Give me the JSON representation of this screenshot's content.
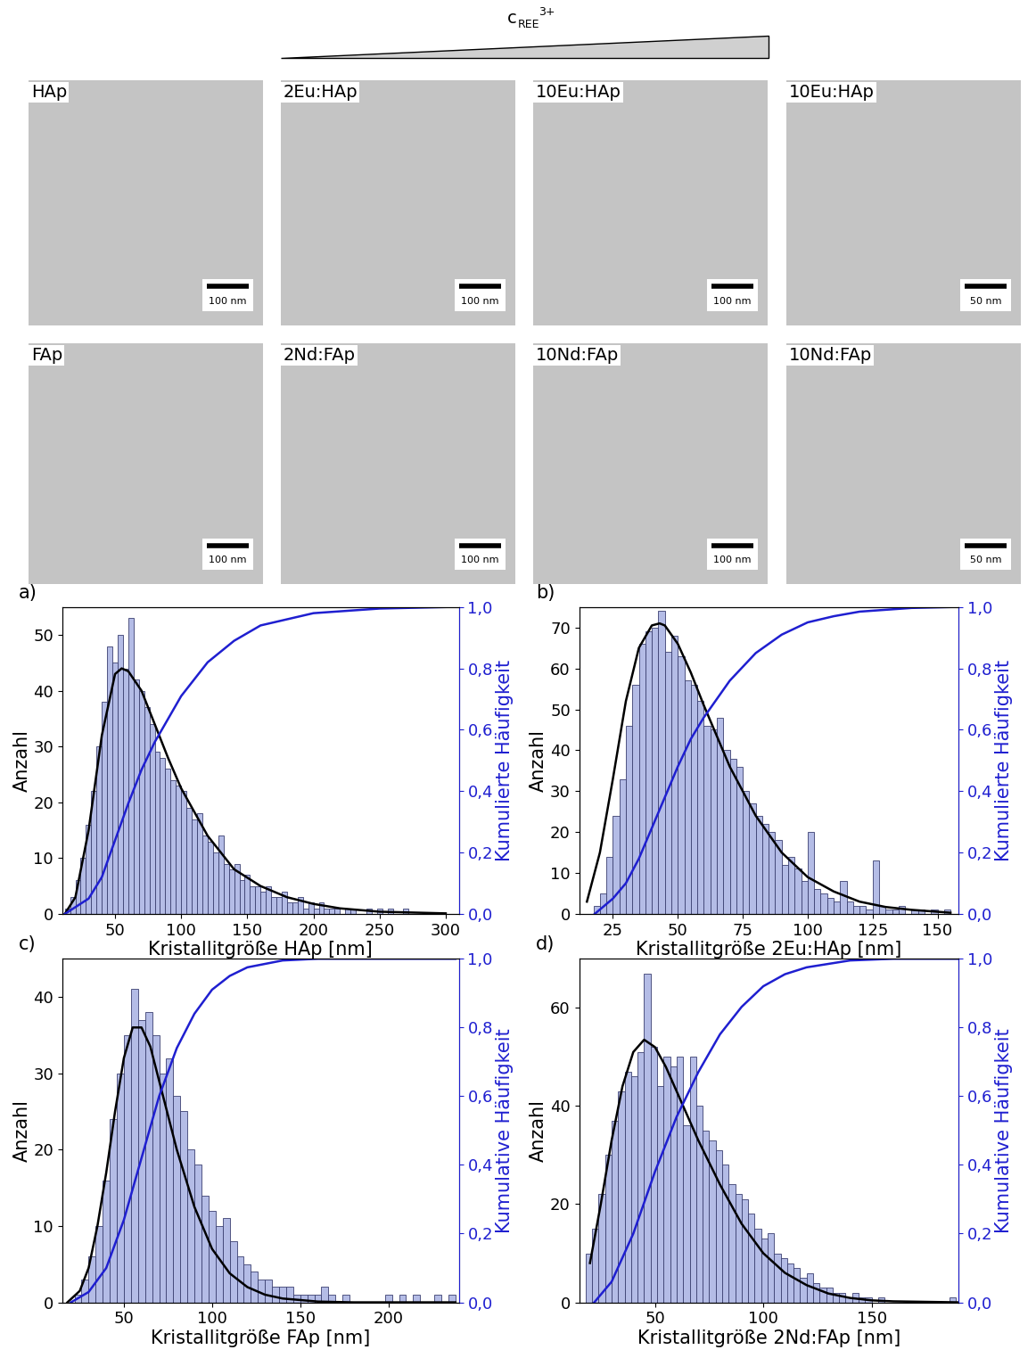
{
  "images": {
    "header": {
      "base": "c",
      "subscript": "REE",
      "superscript": "3+"
    },
    "panels": [
      {
        "label": "HAp",
        "scale_bar": "100 nm"
      },
      {
        "label": "2Eu:HAp",
        "scale_bar": "100 nm"
      },
      {
        "label": "10Eu:HAp",
        "scale_bar": "100 nm"
      },
      {
        "label": "10Eu:HAp",
        "scale_bar": "50 nm"
      },
      {
        "label": "FAp",
        "scale_bar": "100 nm"
      },
      {
        "label": "2Nd:FAp",
        "scale_bar": "100 nm"
      },
      {
        "label": "10Nd:FAp",
        "scale_bar": "100 nm"
      },
      {
        "label": "10Nd:FAp",
        "scale_bar": "50 nm"
      }
    ]
  },
  "chart_data": [
    {
      "type": "histogram",
      "panel_label": "a)",
      "x_label": "Kristallitgröße HAp [nm]",
      "y_label": "Anzahl",
      "y2_label": "Kumulierte Häufigkeit",
      "bins": [
        12,
        16,
        20,
        24,
        28,
        32,
        36,
        40,
        44,
        48,
        52,
        56,
        60,
        64,
        68,
        72,
        76,
        80,
        84,
        88,
        92,
        96,
        100,
        104,
        108,
        112,
        116,
        120,
        124,
        128,
        132,
        136,
        140,
        144,
        148,
        152,
        156,
        160,
        164,
        168,
        172,
        176,
        180,
        184,
        188,
        192,
        196,
        200,
        204,
        208,
        212,
        216,
        220,
        224,
        228,
        232,
        236,
        240,
        244,
        248,
        252,
        256,
        260,
        264,
        268,
        272,
        276,
        280,
        284,
        288,
        292,
        296,
        300
      ],
      "values": [
        1,
        3,
        6,
        10,
        16,
        22,
        30,
        38,
        48,
        45,
        50,
        44,
        53,
        42,
        40,
        37,
        34,
        29,
        28,
        26,
        24,
        23,
        22,
        19,
        17,
        18,
        14,
        13,
        11,
        14,
        9,
        8,
        9,
        6,
        7,
        5,
        5,
        4,
        5,
        3,
        3,
        4,
        2,
        2,
        3,
        1,
        2,
        1,
        2,
        1,
        1,
        1,
        0,
        1,
        1,
        0,
        0,
        1,
        0,
        1,
        0,
        1,
        0,
        0,
        1,
        0,
        0,
        0,
        0,
        0,
        0,
        0
      ],
      "color": "#b4bce6",
      "fit": {
        "type": "line",
        "color": "#000000",
        "x": [
          12,
          20,
          30,
          40,
          50,
          55,
          60,
          70,
          80,
          90,
          100,
          120,
          140,
          160,
          180,
          200,
          220,
          250,
          300
        ],
        "values": [
          0,
          3,
          15,
          32,
          43,
          44,
          43.5,
          40,
          34,
          28,
          22.5,
          14,
          8,
          5,
          3,
          1.8,
          1,
          0.4,
          0.1
        ]
      },
      "cumulative": {
        "type": "line",
        "color": "#1f1fd0",
        "axis": "y2",
        "x": [
          12,
          30,
          40,
          50,
          60,
          70,
          80,
          100,
          120,
          140,
          160,
          200,
          250,
          300
        ],
        "values": [
          0,
          0.05,
          0.12,
          0.24,
          0.36,
          0.47,
          0.56,
          0.71,
          0.82,
          0.89,
          0.94,
          0.98,
          0.995,
          1.0
        ]
      },
      "xlim": [
        10,
        310
      ],
      "xticks": [
        50,
        100,
        150,
        200,
        250,
        300
      ],
      "ylim": [
        0,
        55
      ],
      "yticks": [
        0,
        10,
        20,
        30,
        40,
        50
      ],
      "y2lim": [
        0,
        1.0
      ],
      "y2ticks": [
        {
          "value": 0.0,
          "label": "0,0"
        },
        {
          "value": 0.2,
          "label": "0,2"
        },
        {
          "value": 0.4,
          "label": "0,4"
        },
        {
          "value": 0.6,
          "label": "0,6"
        },
        {
          "value": 0.8,
          "label": "0,8"
        },
        {
          "value": 1.0,
          "label": "1,0"
        }
      ]
    },
    {
      "type": "histogram",
      "panel_label": "b)",
      "x_label": "Kristallitgröße 2Eu:HAp [nm]",
      "y_label": "Anzahl",
      "y2_label": "Kumulierte Häufigkeit",
      "bins": [
        15,
        17.5,
        20,
        22.5,
        25,
        27.5,
        30,
        32.5,
        35,
        37.5,
        40,
        42.5,
        45,
        47.5,
        50,
        52.5,
        55,
        57.5,
        60,
        62.5,
        65,
        67.5,
        70,
        72.5,
        75,
        77.5,
        80,
        82.5,
        85,
        87.5,
        90,
        92.5,
        95,
        97.5,
        100,
        102.5,
        105,
        107.5,
        110,
        112.5,
        115,
        117.5,
        120,
        122.5,
        125,
        127.5,
        130,
        132.5,
        135,
        137.5,
        140,
        142.5,
        145,
        147.5,
        150,
        152.5,
        155
      ],
      "values": [
        0,
        2,
        5,
        14,
        24,
        33,
        46,
        56,
        66,
        69,
        70,
        74,
        64,
        68,
        63,
        57,
        56,
        52,
        46,
        45,
        48,
        40,
        38,
        36,
        30,
        27,
        24,
        22,
        20,
        18,
        12,
        14,
        11,
        8,
        20,
        6,
        5,
        4,
        3,
        8,
        3,
        2,
        2,
        1,
        13,
        2,
        1,
        1,
        2,
        0,
        1,
        1,
        0,
        1,
        0,
        1
      ],
      "color": "#b4bce6",
      "fit": {
        "type": "line",
        "color": "#000000",
        "x": [
          15,
          20,
          25,
          30,
          35,
          40,
          43,
          45,
          50,
          55,
          60,
          70,
          80,
          90,
          100,
          110,
          120,
          130,
          140,
          155
        ],
        "values": [
          3,
          15,
          33,
          52,
          65,
          70.5,
          71,
          70.5,
          66,
          59,
          51,
          36,
          24,
          15,
          9,
          5.5,
          3,
          1.7,
          1,
          0.3
        ]
      },
      "cumulative": {
        "type": "line",
        "color": "#1f1fd0",
        "axis": "y2",
        "x": [
          18,
          25,
          30,
          35,
          40,
          45,
          50,
          55,
          60,
          70,
          80,
          90,
          100,
          110,
          120,
          140,
          155
        ],
        "values": [
          0,
          0.05,
          0.1,
          0.18,
          0.28,
          0.38,
          0.48,
          0.57,
          0.64,
          0.76,
          0.85,
          0.91,
          0.95,
          0.97,
          0.985,
          0.997,
          1.0
        ]
      },
      "xlim": [
        12,
        158
      ],
      "xticks": [
        25,
        50,
        75,
        100,
        125,
        150
      ],
      "ylim": [
        0,
        75
      ],
      "yticks": [
        0,
        10,
        20,
        30,
        40,
        50,
        60,
        70
      ],
      "y2lim": [
        0,
        1.0
      ],
      "y2ticks": [
        {
          "value": 0.0,
          "label": "0,0"
        },
        {
          "value": 0.2,
          "label": "0,2"
        },
        {
          "value": 0.4,
          "label": "0,4"
        },
        {
          "value": 0.6,
          "label": "0,6"
        },
        {
          "value": 0.8,
          "label": "0,8"
        },
        {
          "value": 1.0,
          "label": "1,0"
        }
      ]
    },
    {
      "type": "histogram",
      "panel_label": "c)",
      "x_label": "Kristallitgröße FAp [nm]",
      "y_label": "Anzahl",
      "y2_label": "Kumulative Häufigkeit",
      "bins": [
        18,
        22,
        26,
        30,
        34,
        38,
        42,
        46,
        50,
        54,
        58,
        62,
        66,
        70,
        74,
        78,
        82,
        86,
        90,
        94,
        98,
        102,
        106,
        110,
        114,
        118,
        122,
        126,
        130,
        134,
        138,
        142,
        146,
        150,
        154,
        158,
        162,
        166,
        170,
        174,
        178,
        182,
        186,
        190,
        194,
        198,
        202,
        206,
        210,
        214,
        218,
        222,
        226,
        230,
        234,
        238
      ],
      "values": [
        0,
        1,
        3,
        6,
        10,
        16,
        24,
        30,
        35,
        41,
        37,
        38,
        35,
        30,
        32,
        27,
        25,
        20,
        18,
        14,
        12,
        10,
        11,
        8,
        6,
        5,
        4,
        3,
        3,
        2,
        2,
        2,
        1,
        1,
        1,
        1,
        2,
        1,
        0,
        1,
        0,
        0,
        0,
        0,
        0,
        1,
        0,
        1,
        0,
        1,
        0,
        0,
        1,
        0,
        1
      ],
      "color": "#b4bce6",
      "fit": {
        "type": "line",
        "color": "#000000",
        "x": [
          18,
          25,
          30,
          35,
          40,
          45,
          50,
          55,
          60,
          65,
          70,
          80,
          90,
          100,
          110,
          120,
          130,
          140,
          160,
          180,
          238
        ],
        "values": [
          0,
          1.5,
          4.5,
          10,
          17,
          25,
          32,
          36,
          36,
          33.5,
          29,
          20,
          12.5,
          7,
          3.8,
          2,
          1,
          0.5,
          0.1,
          0,
          0
        ]
      },
      "cumulative": {
        "type": "line",
        "color": "#1f1fd0",
        "axis": "y2",
        "x": [
          20,
          30,
          40,
          50,
          60,
          70,
          80,
          90,
          100,
          110,
          120,
          140,
          160,
          238
        ],
        "values": [
          0,
          0.03,
          0.1,
          0.24,
          0.42,
          0.6,
          0.74,
          0.84,
          0.91,
          0.95,
          0.975,
          0.995,
          1.0,
          1.0
        ]
      },
      "xlim": [
        15,
        240
      ],
      "xticks": [
        50,
        100,
        150,
        200
      ],
      "ylim": [
        0,
        45
      ],
      "yticks": [
        0,
        10,
        20,
        30,
        40
      ],
      "y2lim": [
        0,
        1.0
      ],
      "y2ticks": [
        {
          "value": 0.0,
          "label": "0,0"
        },
        {
          "value": 0.2,
          "label": "0,2"
        },
        {
          "value": 0.4,
          "label": "0,4"
        },
        {
          "value": 0.6,
          "label": "0,6"
        },
        {
          "value": 0.8,
          "label": "0,8"
        },
        {
          "value": 1.0,
          "label": "1,0"
        }
      ]
    },
    {
      "type": "histogram",
      "panel_label": "d)",
      "x_label": "Kristallitgröße 2Nd:FAp [nm]",
      "y_label": "Anzahl",
      "y2_label": "Kumulative Häufigkeit",
      "bins": [
        18,
        21,
        24,
        27,
        30,
        33,
        36,
        39,
        42,
        45,
        48,
        51,
        54,
        57,
        60,
        63,
        66,
        69,
        72,
        75,
        78,
        81,
        84,
        87,
        90,
        93,
        96,
        99,
        102,
        105,
        108,
        111,
        114,
        117,
        120,
        123,
        126,
        129,
        132,
        135,
        138,
        141,
        144,
        147,
        150,
        153,
        156,
        159,
        162,
        165,
        168,
        171,
        174,
        177,
        180,
        183,
        186,
        189
      ],
      "values": [
        10,
        15,
        22,
        30,
        37,
        43,
        47,
        46,
        51,
        67,
        52,
        44,
        50,
        48,
        50,
        36,
        50,
        40,
        35,
        33,
        31,
        28,
        24,
        22,
        21,
        18,
        15,
        13,
        14,
        10,
        9,
        8,
        7,
        5,
        6,
        4,
        3,
        3,
        2,
        2,
        1,
        2,
        1,
        1,
        0,
        1,
        0,
        0,
        0,
        0,
        0,
        0,
        0,
        0,
        0,
        0,
        1
      ],
      "color": "#b4bce6",
      "fit": {
        "type": "line",
        "color": "#000000",
        "x": [
          20,
          25,
          30,
          35,
          40,
          45,
          50,
          55,
          60,
          70,
          80,
          90,
          100,
          110,
          120,
          130,
          140,
          150,
          160,
          190
        ],
        "values": [
          8,
          20,
          33,
          44,
          51,
          53.5,
          52,
          48,
          43,
          33,
          24,
          16,
          10,
          6,
          3.5,
          1.8,
          0.9,
          0.4,
          0.2,
          0
        ]
      },
      "cumulative": {
        "type": "line",
        "color": "#1f1fd0",
        "axis": "y2",
        "x": [
          22,
          30,
          40,
          50,
          60,
          70,
          80,
          90,
          100,
          110,
          120,
          140,
          160,
          190
        ],
        "values": [
          0,
          0.06,
          0.2,
          0.38,
          0.54,
          0.67,
          0.78,
          0.86,
          0.92,
          0.955,
          0.975,
          0.995,
          1.0,
          1.0
        ]
      },
      "xlim": [
        15,
        190
      ],
      "xticks": [
        50,
        100,
        150
      ],
      "ylim": [
        0,
        70
      ],
      "yticks": [
        0,
        20,
        40,
        60
      ],
      "y2lim": [
        0,
        1.0
      ],
      "y2ticks": [
        {
          "value": 0.0,
          "label": "0,0"
        },
        {
          "value": 0.2,
          "label": "0,2"
        },
        {
          "value": 0.4,
          "label": "0,4"
        },
        {
          "value": 0.6,
          "label": "0,6"
        },
        {
          "value": 0.8,
          "label": "0,8"
        },
        {
          "value": 1.0,
          "label": "1,0"
        }
      ]
    }
  ]
}
